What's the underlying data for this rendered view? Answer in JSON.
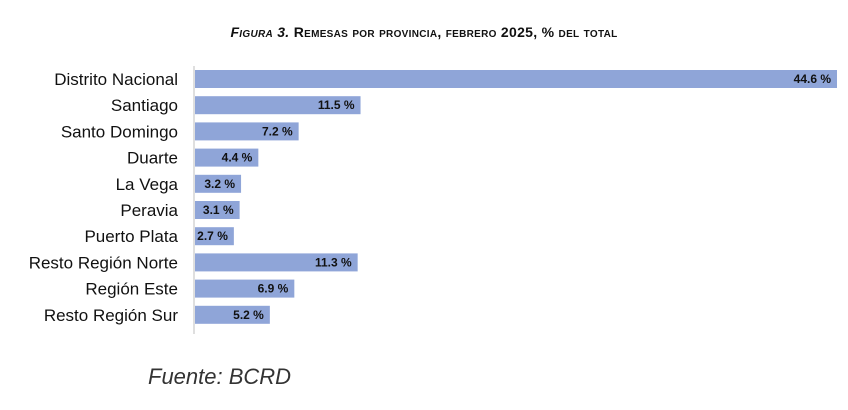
{
  "title": {
    "figure": "Figura 3.",
    "text": "Remesas por provincia, febrero 2025, % del total"
  },
  "source": "Fuente: BCRD",
  "chart_data": {
    "type": "bar",
    "orientation": "horizontal",
    "categories": [
      "Distrito Nacional",
      "Santiago",
      "Santo Domingo",
      "Duarte",
      "La Vega",
      "Peravia",
      "Puerto Plata",
      "Resto Región Norte",
      "Región Este",
      "Resto Región Sur"
    ],
    "values": [
      44.6,
      11.5,
      7.2,
      4.4,
      3.2,
      3.1,
      2.7,
      11.3,
      6.9,
      5.2
    ],
    "value_labels": [
      "44.6 %",
      "11.5 %",
      "7.2 %",
      "4.4 %",
      "3.2 %",
      "3.1 %",
      "2.7 %",
      "11.3 %",
      "6.9 %",
      "5.2 %"
    ],
    "xlim": [
      0,
      44.6
    ],
    "bar_color": "#8fa5d8",
    "grid": false,
    "legend": "none"
  }
}
